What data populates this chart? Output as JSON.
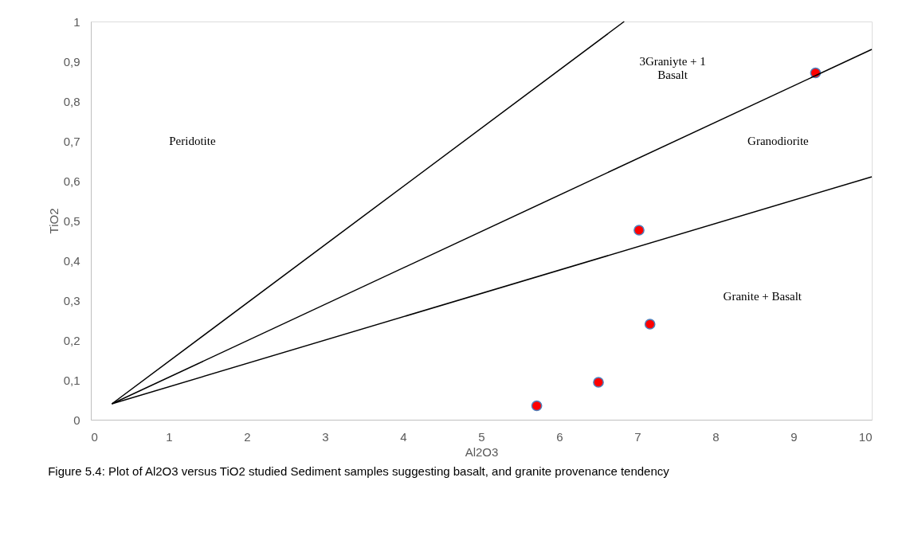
{
  "chart_data": {
    "type": "scatter",
    "xlabel": "Al2O3",
    "ylabel": "TiO2",
    "xlim": [
      0,
      10
    ],
    "xticks": [
      0,
      1,
      2,
      3,
      4,
      5,
      6,
      7,
      8,
      9,
      10
    ],
    "ylim": [
      0,
      1
    ],
    "yticks": [
      0,
      {
        "value": 0.1,
        "label": "0,1"
      },
      {
        "value": 0.2,
        "label": "0,2"
      },
      {
        "value": 0.3,
        "label": "0,3"
      },
      {
        "value": 0.4,
        "label": "0,4"
      },
      {
        "value": 0.5,
        "label": "0,5"
      },
      {
        "value": 0.6,
        "label": "0,6"
      },
      {
        "value": 0.7,
        "label": "0,7"
      },
      {
        "value": 0.8,
        "label": "0,8"
      },
      {
        "value": 0.9,
        "label": "0,9"
      },
      1
    ],
    "grid": false,
    "series": [
      {
        "marker": "circle",
        "color": "#ff0000",
        "x": [
          5.71,
          6.5,
          7.02,
          7.16,
          9.28
        ],
        "values": [
          0.035,
          0.094,
          0.476,
          0.24,
          0.871
        ]
      },
      {
        "type": "line",
        "color": "#000000",
        "x": [
          0.27,
          6.83
        ],
        "values": [
          0.04,
          1.0
        ]
      },
      {
        "type": "line",
        "color": "#000000",
        "x": [
          0.27,
          10
        ],
        "values": [
          0.04,
          0.93
        ]
      },
      {
        "type": "line",
        "color": "#000000",
        "x": [
          0.27,
          10
        ],
        "values": [
          0.04,
          0.61
        ]
      }
    ],
    "annotations": [
      "Peridotite",
      "3Graniyte + 1\nBasalt",
      "Granodiorite",
      "Granite + Basalt",
      "Figure 5.4: Plot of Al2O3 versus TiO2 studied Sediment samples suggesting basalt, and granite provenance tendency"
    ]
  }
}
